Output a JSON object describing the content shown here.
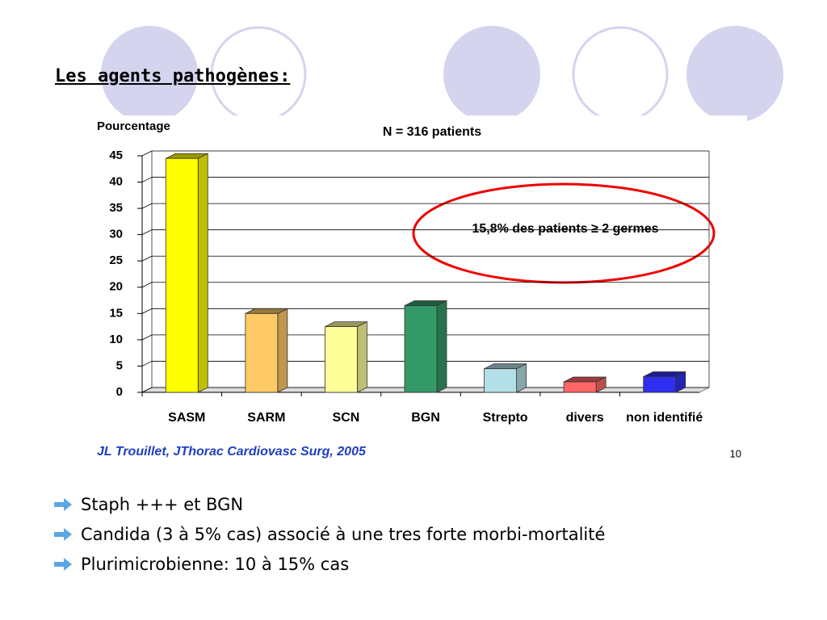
{
  "heading": "Les agents pathogènes:",
  "chart_data": {
    "type": "bar",
    "subtitle": "N = 316 patients",
    "y_label": "Pourcentage",
    "annotation": "15,8% des patients ≥ 2 germes",
    "categories": [
      "SASM",
      "SARM",
      "SCN",
      "BGN",
      "Strepto",
      "divers",
      "non identifié"
    ],
    "values": [
      44.5,
      15,
      12.5,
      16.5,
      4.5,
      2,
      3
    ],
    "colors": [
      "#ffff00",
      "#ffc966",
      "#ffff99",
      "#339966",
      "#b3e0e6",
      "#ff6666",
      "#2e2ef0"
    ],
    "ylim": [
      0,
      45
    ],
    "yticks": [
      0,
      5,
      10,
      15,
      20,
      25,
      30,
      35,
      40,
      45
    ],
    "grid": true
  },
  "source": "JL Trouillet, JThorac Cardiovasc Surg, 2005",
  "page_number": "10",
  "bullets": [
    "Staph +++ et BGN",
    "Candida (3 à 5% cas) associé à une tres forte morbi-mortalité",
    "Plurimicrobienne: 10 à 15% cas"
  ]
}
